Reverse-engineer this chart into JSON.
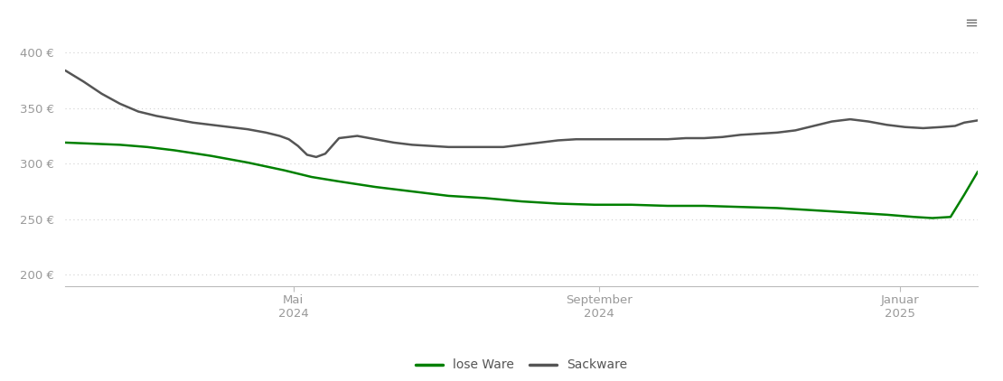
{
  "ylim": [
    190,
    420
  ],
  "yticks": [
    200,
    250,
    300,
    350,
    400
  ],
  "ytick_labels": [
    "200 €",
    "250 €",
    "300 €",
    "350 €",
    "400 €"
  ],
  "xtick_positions": [
    0.25,
    0.585,
    0.915
  ],
  "xtick_labels": [
    "Mai\n2024",
    "September\n2024",
    "Januar\n2025"
  ],
  "lose_ware_color": "#008000",
  "sackware_color": "#555555",
  "background_color": "#ffffff",
  "grid_color": "#d0d0d0",
  "line_width": 1.8,
  "legend_labels": [
    "lose Ware",
    "Sackware"
  ],
  "lose_ware_x": [
    0.0,
    0.03,
    0.06,
    0.09,
    0.12,
    0.16,
    0.2,
    0.24,
    0.27,
    0.3,
    0.34,
    0.38,
    0.42,
    0.46,
    0.5,
    0.54,
    0.58,
    0.62,
    0.66,
    0.7,
    0.74,
    0.78,
    0.82,
    0.86,
    0.9,
    0.93,
    0.95,
    0.97,
    0.985,
    1.0
  ],
  "lose_ware_y": [
    319,
    318,
    317,
    315,
    312,
    307,
    301,
    294,
    288,
    284,
    279,
    275,
    271,
    269,
    266,
    264,
    263,
    263,
    262,
    262,
    261,
    260,
    258,
    256,
    254,
    252,
    251,
    252,
    272,
    293
  ],
  "sackware_x": [
    0.0,
    0.02,
    0.04,
    0.06,
    0.08,
    0.1,
    0.12,
    0.14,
    0.16,
    0.18,
    0.2,
    0.22,
    0.235,
    0.245,
    0.255,
    0.265,
    0.275,
    0.285,
    0.3,
    0.32,
    0.34,
    0.36,
    0.38,
    0.4,
    0.42,
    0.44,
    0.46,
    0.48,
    0.5,
    0.52,
    0.54,
    0.56,
    0.58,
    0.6,
    0.62,
    0.64,
    0.66,
    0.68,
    0.7,
    0.72,
    0.74,
    0.76,
    0.78,
    0.8,
    0.82,
    0.84,
    0.86,
    0.88,
    0.9,
    0.92,
    0.94,
    0.96,
    0.975,
    0.985,
    1.0
  ],
  "sackware_y": [
    384,
    374,
    363,
    354,
    347,
    343,
    340,
    337,
    335,
    333,
    331,
    328,
    325,
    322,
    316,
    308,
    306,
    309,
    323,
    325,
    322,
    319,
    317,
    316,
    315,
    315,
    315,
    315,
    317,
    319,
    321,
    322,
    322,
    322,
    322,
    322,
    322,
    323,
    323,
    324,
    326,
    327,
    328,
    330,
    334,
    338,
    340,
    338,
    335,
    333,
    332,
    333,
    334,
    337,
    339
  ]
}
